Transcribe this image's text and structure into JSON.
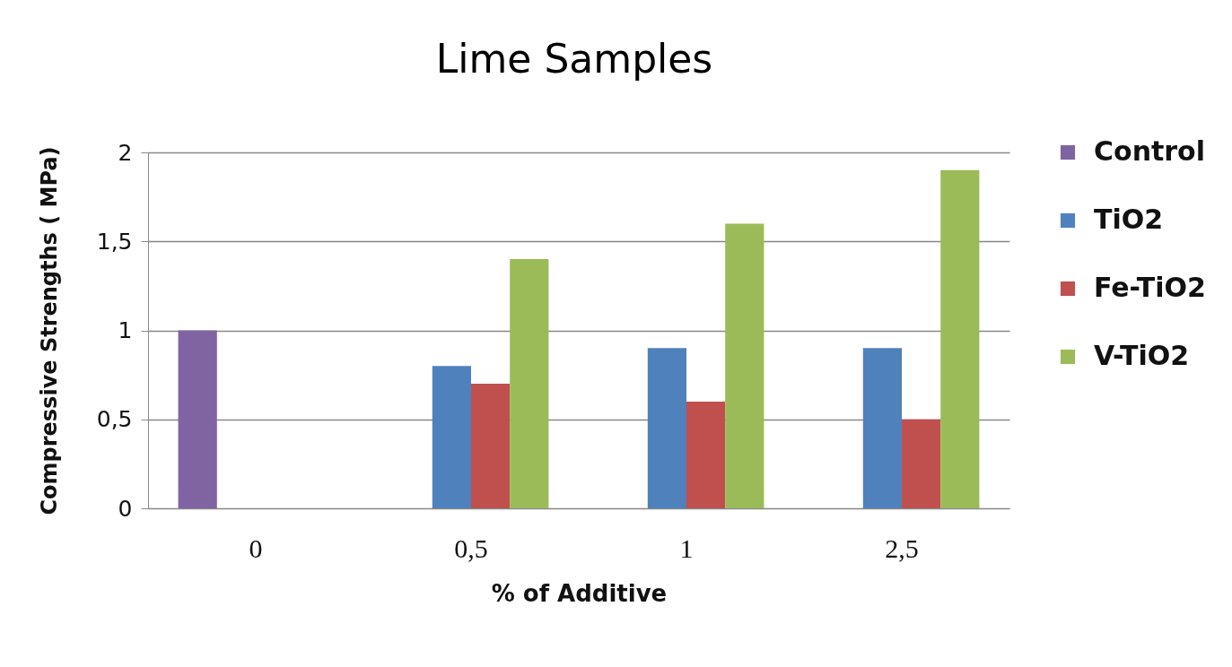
{
  "chart_data": {
    "type": "bar",
    "title": "Lime Samples",
    "xlabel": "% of Additive",
    "ylabel": "Compressive Strengths ( MPa)",
    "categories": [
      "0",
      "0,5",
      "1",
      "2,5"
    ],
    "series": [
      {
        "name": "Control",
        "color": "#8064a2",
        "values": [
          1,
          null,
          null,
          null
        ]
      },
      {
        "name": "TiO2",
        "color": "#4f81bd",
        "values": [
          null,
          0.8,
          0.9,
          0.9
        ]
      },
      {
        "name": "Fe-TiO2",
        "color": "#c0504d",
        "values": [
          null,
          0.7,
          0.6,
          0.5
        ]
      },
      {
        "name": "V-TiO2",
        "color": "#9bbb59",
        "values": [
          null,
          1.4,
          1.6,
          1.9
        ]
      }
    ],
    "ylim": [
      0,
      2
    ],
    "yticks": [
      0,
      {
        "value": 0.5,
        "label": "0,5"
      },
      1,
      {
        "value": 1.5,
        "label": "1,5"
      },
      2
    ],
    "grid": "y",
    "legend": "right"
  }
}
